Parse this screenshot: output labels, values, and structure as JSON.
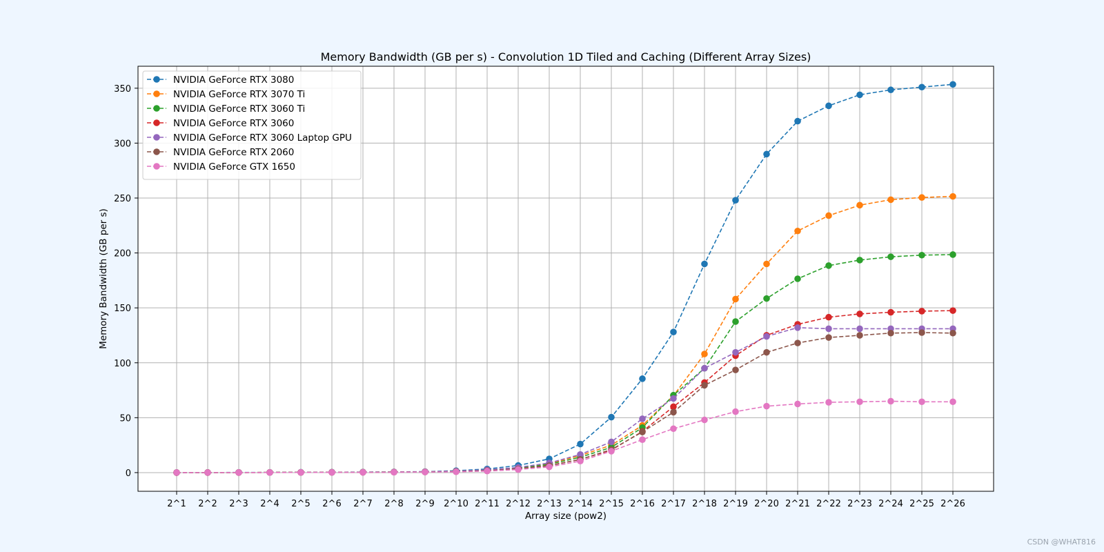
{
  "watermark": "CSDN @WHAT816",
  "chart_data": {
    "type": "line",
    "title": "Memory Bandwidth (GB per s) - Convolution 1D Tiled and Caching (Different Array Sizes)",
    "xlabel": "Array size (pow2)",
    "ylabel": "Memory Bandwidth (GB per s)",
    "categories": [
      "2^1",
      "2^2",
      "2^3",
      "2^4",
      "2^5",
      "2^6",
      "2^7",
      "2^8",
      "2^9",
      "2^10",
      "2^11",
      "2^12",
      "2^13",
      "2^14",
      "2^15",
      "2^16",
      "2^17",
      "2^18",
      "2^19",
      "2^20",
      "2^21",
      "2^22",
      "2^23",
      "2^24",
      "2^25",
      "2^26"
    ],
    "ylim": [
      -17,
      370
    ],
    "yticks": [
      0,
      50,
      100,
      150,
      200,
      250,
      300,
      350
    ],
    "grid": true,
    "legend_position": "top-left",
    "line_style": "dashed",
    "marker": "circle",
    "colors": {
      "background": "#eef6ff",
      "axes_face": "#ffffff",
      "grid": "#b0b0b0",
      "text": "#000000"
    },
    "series": [
      {
        "name": "NVIDIA GeForce RTX 3080",
        "color": "#1f77b4",
        "values": [
          0.05,
          0.1,
          0.15,
          0.2,
          0.3,
          0.4,
          0.5,
          0.6,
          0.9,
          1.7,
          3.3,
          6.5,
          12.5,
          26,
          50.5,
          85.5,
          128,
          190,
          248,
          290,
          320,
          334,
          344,
          348.5,
          351,
          353.5
        ]
      },
      {
        "name": "NVIDIA GeForce RTX 3070 Ti",
        "color": "#ff7f0e",
        "values": [
          0.03,
          0.07,
          0.1,
          0.15,
          0.2,
          0.3,
          0.4,
          0.5,
          0.7,
          1.2,
          2.2,
          4.3,
          8.2,
          15.5,
          25,
          43,
          70,
          108,
          158,
          190,
          220,
          234,
          243.5,
          248.5,
          250.5,
          251.5
        ]
      },
      {
        "name": "NVIDIA GeForce RTX 3060 Ti",
        "color": "#2ca02c",
        "values": [
          0.03,
          0.06,
          0.1,
          0.14,
          0.2,
          0.28,
          0.38,
          0.5,
          0.7,
          1.1,
          2.1,
          4,
          7.6,
          14,
          23,
          41,
          70.5,
          95,
          137.5,
          158.5,
          176.5,
          188.5,
          193.5,
          196.5,
          198,
          198.5
        ]
      },
      {
        "name": "NVIDIA GeForce RTX 3060",
        "color": "#d62728",
        "values": [
          0.03,
          0.05,
          0.08,
          0.12,
          0.17,
          0.24,
          0.33,
          0.45,
          0.6,
          0.95,
          1.8,
          3.4,
          6.5,
          12,
          20.5,
          37.5,
          60,
          82,
          106.5,
          125,
          135,
          141.5,
          144.5,
          146,
          147,
          147.5
        ]
      },
      {
        "name": "NVIDIA GeForce RTX 3060 Laptop GPU",
        "color": "#9467bd",
        "values": [
          0.03,
          0.06,
          0.1,
          0.14,
          0.2,
          0.3,
          0.4,
          0.55,
          0.8,
          1.3,
          2.5,
          4.7,
          8.8,
          16.5,
          28,
          49,
          67.5,
          95,
          109.5,
          124,
          132,
          131,
          131,
          131,
          131,
          131
        ]
      },
      {
        "name": "NVIDIA GeForce RTX 2060",
        "color": "#8c564b",
        "values": [
          0.03,
          0.05,
          0.08,
          0.12,
          0.17,
          0.23,
          0.32,
          0.45,
          0.6,
          0.95,
          1.8,
          3.3,
          6.3,
          12,
          21,
          37,
          55,
          79.5,
          93.5,
          109.5,
          118,
          123,
          125,
          127,
          127.5,
          127
        ]
      },
      {
        "name": "NVIDIA GeForce GTX 1650",
        "color": "#e377c2",
        "values": [
          0.02,
          0.04,
          0.06,
          0.09,
          0.13,
          0.18,
          0.25,
          0.35,
          0.5,
          0.75,
          1.4,
          2.8,
          5.2,
          10.5,
          19.5,
          30,
          40,
          48,
          55.5,
          60.5,
          62.5,
          64,
          64.5,
          65,
          64.5,
          64.5
        ]
      }
    ]
  }
}
